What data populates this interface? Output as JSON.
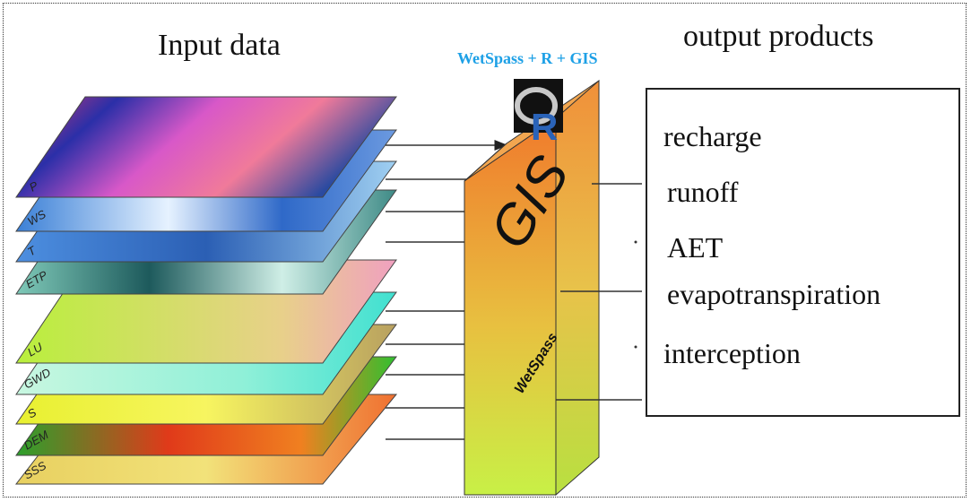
{
  "input_heading": "Input data",
  "output_heading": "output products",
  "tool_title": "WetSpass + R + GIS",
  "logo_text": "R",
  "box_labels": {
    "gis": "GIS",
    "wetspass": "WetSpass"
  },
  "layers": [
    {
      "label": "P"
    },
    {
      "label": "WS"
    },
    {
      "label": "T"
    },
    {
      "label": "ETP"
    },
    {
      "label": "LU"
    },
    {
      "label": "GWD"
    },
    {
      "label": "S"
    },
    {
      "label": "DEM"
    },
    {
      "label": "SSS"
    }
  ],
  "outputs": [
    {
      "label": "recharge"
    },
    {
      "label": "runoff"
    },
    {
      "label": "AET"
    },
    {
      "label": "evapotranspiration"
    },
    {
      "label": "interception"
    }
  ],
  "colors": {
    "title_blue": "#1da0e6",
    "box_orange": "#f07a2c",
    "box_yellow": "#c8f046"
  }
}
